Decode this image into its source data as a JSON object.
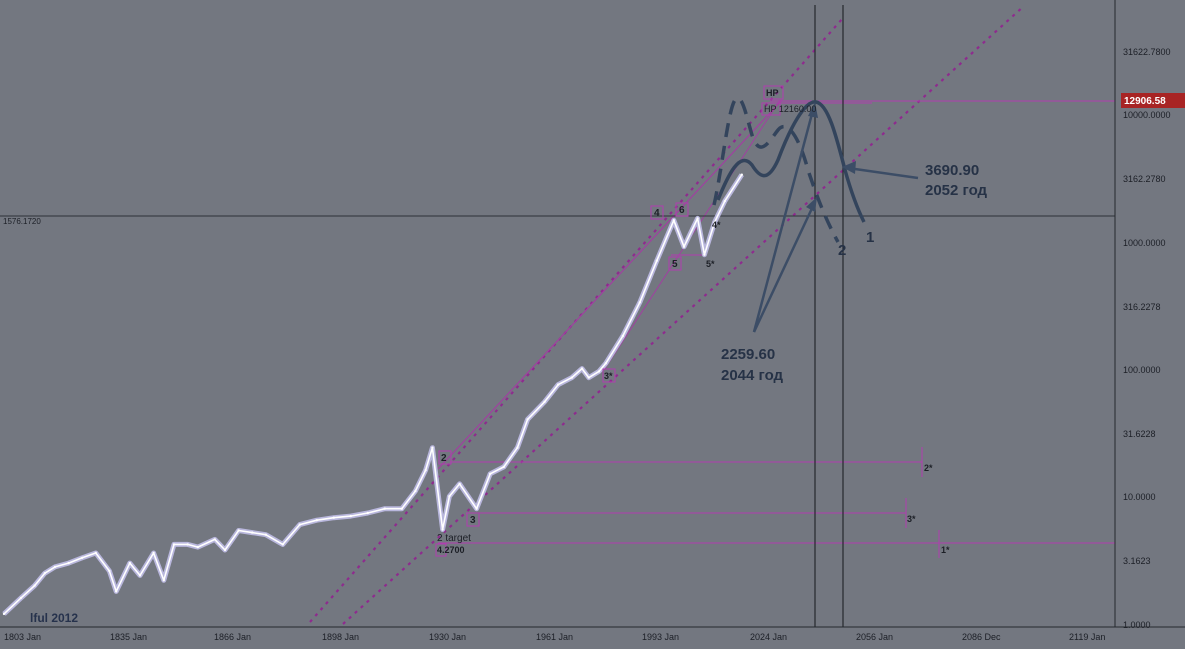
{
  "chart_data": {
    "type": "line",
    "y_scale": "log",
    "ylim": [
      1,
      50000
    ],
    "grid": false,
    "x_ticks": [
      "1803 Jan",
      "1835 Jan",
      "1866 Jan",
      "1898 Jan",
      "1930 Jan",
      "1961 Jan",
      "1993 Jan",
      "2024 Jan",
      "2056 Jan",
      "2086 Dec",
      "2119 Jan"
    ],
    "y_ticks": [
      "31622.7800",
      "10000.0000",
      "3162.2780",
      "1000.0000",
      "316.2278",
      "100.0000",
      "31.6228",
      "10.0000",
      "3.1623",
      "1.0000"
    ],
    "current_price": "12906.58",
    "hline_label": "1576.1720",
    "annotations": {
      "credit": "lful 2012",
      "hp_box": "HP",
      "hp_line": "HP 12160.00",
      "target_label": "2 target",
      "target_value": "4.2700",
      "a1_value": "3690.90",
      "a1_year": "2052 год",
      "a2_value": "2259.60",
      "a2_year": "2044 год",
      "path1": "1",
      "path2": "2"
    },
    "wave_labels": {
      "w1s": "1*",
      "w2": "2",
      "w2s": "2*",
      "w3": "3",
      "w3s": "3*",
      "w3s_mid": "3*",
      "w4": "4",
      "w4s": "4*",
      "w5": "5",
      "w5s": "5*",
      "w6": "6"
    },
    "series": [
      {
        "values": [
          [
            1803,
            1.2
          ],
          [
            1808,
            1.6
          ],
          [
            1812,
            2.0
          ],
          [
            1815,
            2.5
          ],
          [
            1818,
            2.8
          ],
          [
            1822,
            3.0
          ],
          [
            1826,
            3.3
          ],
          [
            1830,
            3.6
          ],
          [
            1834,
            2.6
          ],
          [
            1836,
            1.8
          ],
          [
            1840,
            3.0
          ],
          [
            1843,
            2.4
          ],
          [
            1847,
            3.6
          ],
          [
            1850,
            2.2
          ],
          [
            1853,
            4.2
          ],
          [
            1857,
            4.2
          ],
          [
            1860,
            4.0
          ],
          [
            1865,
            4.6
          ],
          [
            1868,
            3.8
          ],
          [
            1872,
            5.4
          ],
          [
            1876,
            5.2
          ],
          [
            1880,
            5.0
          ],
          [
            1885,
            4.2
          ],
          [
            1890,
            6.0
          ],
          [
            1895,
            6.5
          ],
          [
            1900,
            6.8
          ],
          [
            1905,
            7.0
          ],
          [
            1910,
            7.4
          ],
          [
            1915,
            8.0
          ],
          [
            1920,
            8.0
          ],
          [
            1924,
            11.0
          ],
          [
            1927,
            16.0
          ],
          [
            1929,
            24.0
          ],
          [
            1932,
            5.5
          ],
          [
            1934,
            10.0
          ],
          [
            1937,
            12.5
          ],
          [
            1942,
            8.0
          ],
          [
            1946,
            15.0
          ],
          [
            1950,
            17.0
          ],
          [
            1954,
            24.0
          ],
          [
            1957,
            40.0
          ],
          [
            1962,
            55.0
          ],
          [
            1966,
            75.0
          ],
          [
            1970,
            85.0
          ],
          [
            1973,
            100.0
          ],
          [
            1975,
            85.0
          ],
          [
            1978,
            95.0
          ],
          [
            1980,
            110.0
          ],
          [
            1985,
            180.0
          ],
          [
            1990,
            330.0
          ],
          [
            1995,
            700.0
          ],
          [
            2000,
            1450.0
          ],
          [
            2003,
            900.0
          ],
          [
            2007,
            1500.0
          ],
          [
            2009,
            780.0
          ],
          [
            2012,
            1400.0
          ],
          [
            2015,
            2050.0
          ],
          [
            2020,
            3300.0
          ]
        ]
      }
    ]
  }
}
